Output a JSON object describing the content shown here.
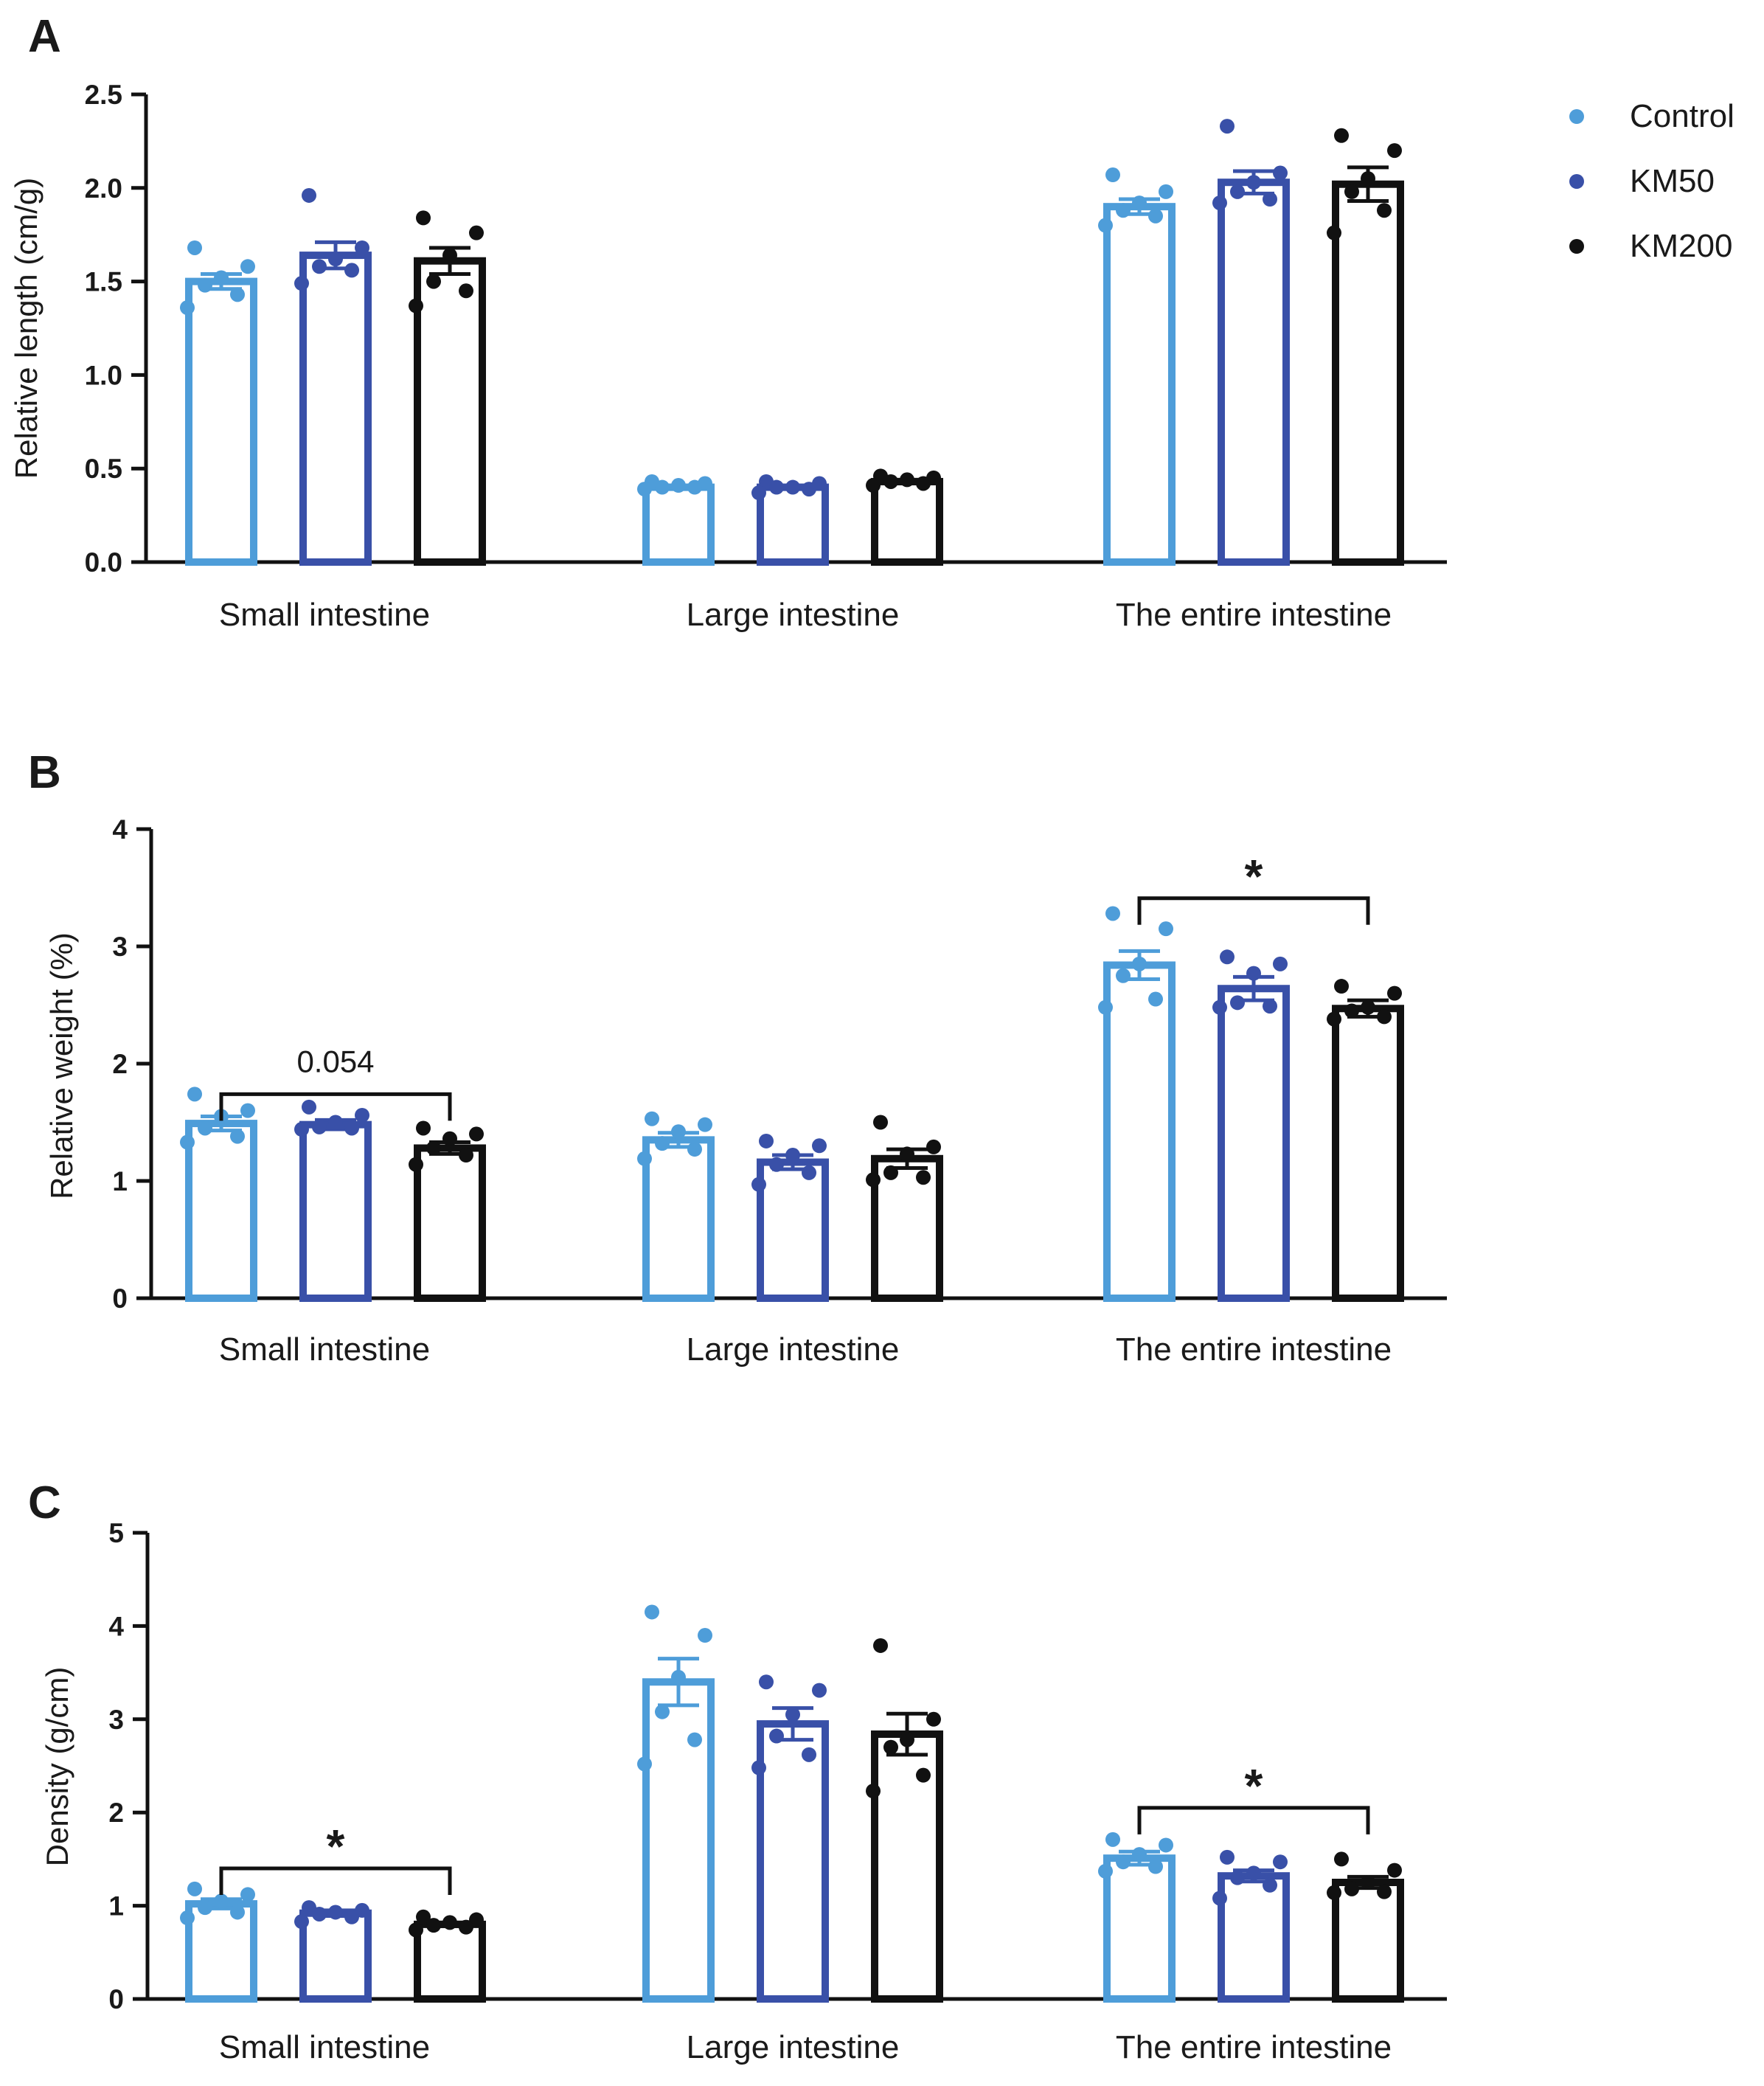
{
  "legend": [
    {
      "name": "Control",
      "color": "#4e9dd9"
    },
    {
      "name": "KM50",
      "color": "#3950a8"
    },
    {
      "name": "KM200",
      "color": "#111111"
    }
  ],
  "chart_data": [
    {
      "panel": "A",
      "type": "bar",
      "ylabel": "Relative length (cm/g)",
      "ylim": [
        0,
        2.5
      ],
      "yticks": [
        "0.0",
        "0.5",
        "1.0",
        "1.5",
        "2.0",
        "2.5"
      ],
      "categories": [
        "Small intestine",
        "Large intestine",
        "The entire intestine"
      ],
      "series": [
        {
          "name": "Control",
          "values": [
            1.5,
            0.4,
            1.9
          ],
          "sem": [
            0.04,
            0.01,
            0.04
          ],
          "points": [
            [
              1.68,
              1.58,
              1.52,
              1.48,
              1.43,
              1.36
            ],
            [
              0.43,
              0.42,
              0.41,
              0.4,
              0.4,
              0.39
            ],
            [
              2.07,
              1.98,
              1.92,
              1.88,
              1.85,
              1.8
            ]
          ]
        },
        {
          "name": "KM50",
          "values": [
            1.64,
            0.4,
            2.03
          ],
          "sem": [
            0.07,
            0.01,
            0.06
          ],
          "points": [
            [
              1.96,
              1.68,
              1.62,
              1.58,
              1.56,
              1.49
            ],
            [
              0.43,
              0.42,
              0.4,
              0.4,
              0.39,
              0.37
            ],
            [
              2.33,
              2.08,
              2.03,
              1.98,
              1.94,
              1.92
            ]
          ]
        },
        {
          "name": "KM200",
          "values": [
            1.61,
            0.43,
            2.02
          ],
          "sem": [
            0.07,
            0.01,
            0.09
          ],
          "points": [
            [
              1.84,
              1.76,
              1.64,
              1.5,
              1.45,
              1.37
            ],
            [
              0.46,
              0.45,
              0.44,
              0.43,
              0.42,
              0.41
            ],
            [
              2.28,
              2.2,
              2.05,
              1.98,
              1.88,
              1.76
            ]
          ]
        }
      ],
      "significance": []
    },
    {
      "panel": "B",
      "type": "bar",
      "ylabel": "Relative weight (%)",
      "ylim": [
        0,
        4
      ],
      "yticks": [
        "0",
        "1",
        "2",
        "3",
        "4"
      ],
      "categories": [
        "Small intestine",
        "Large intestine",
        "The entire intestine"
      ],
      "series": [
        {
          "name": "Control",
          "values": [
            1.49,
            1.35,
            2.84
          ],
          "sem": [
            0.06,
            0.06,
            0.12
          ],
          "points": [
            [
              1.74,
              1.6,
              1.55,
              1.45,
              1.38,
              1.33
            ],
            [
              1.53,
              1.48,
              1.42,
              1.32,
              1.27,
              1.19
            ],
            [
              3.28,
              3.15,
              2.85,
              2.75,
              2.55,
              2.48
            ]
          ]
        },
        {
          "name": "KM50",
          "values": [
            1.48,
            1.16,
            2.64
          ],
          "sem": [
            0.04,
            0.06,
            0.1
          ],
          "points": [
            [
              1.63,
              1.56,
              1.5,
              1.46,
              1.45,
              1.44
            ],
            [
              1.34,
              1.3,
              1.22,
              1.14,
              1.07,
              0.97
            ],
            [
              2.91,
              2.85,
              2.77,
              2.52,
              2.49,
              2.48
            ]
          ]
        },
        {
          "name": "KM200",
          "values": [
            1.28,
            1.19,
            2.47
          ],
          "sem": [
            0.05,
            0.08,
            0.07
          ],
          "points": [
            [
              1.45,
              1.4,
              1.36,
              1.28,
              1.22,
              1.14
            ],
            [
              1.5,
              1.29,
              1.23,
              1.07,
              1.03,
              1.01
            ],
            [
              2.66,
              2.6,
              2.48,
              2.45,
              2.4,
              2.38
            ]
          ]
        }
      ],
      "significance": [
        {
          "category": "Small intestine",
          "from": "Control",
          "to": "KM200",
          "label": "0.054",
          "y": 1.74
        },
        {
          "category": "The entire intestine",
          "from": "Control",
          "to": "KM200",
          "label": "*",
          "y": 3.41
        }
      ]
    },
    {
      "panel": "C",
      "type": "bar",
      "ylabel": "Density (g/cm)",
      "ylim": [
        0,
        5
      ],
      "yticks": [
        "0",
        "1",
        "2",
        "3",
        "4",
        "5"
      ],
      "categories": [
        "Small intestine",
        "Large intestine",
        "The entire intestine"
      ],
      "series": [
        {
          "name": "Control",
          "values": [
            1.02,
            3.4,
            1.51
          ],
          "sem": [
            0.05,
            0.25,
            0.07
          ],
          "points": [
            [
              1.18,
              1.12,
              1.05,
              0.98,
              0.93,
              0.87
            ],
            [
              4.15,
              3.9,
              3.45,
              3.08,
              2.78,
              2.52
            ],
            [
              1.71,
              1.65,
              1.55,
              1.47,
              1.42,
              1.37
            ]
          ]
        },
        {
          "name": "KM50",
          "values": [
            0.92,
            2.95,
            1.32
          ],
          "sem": [
            0.03,
            0.17,
            0.06
          ],
          "points": [
            [
              0.98,
              0.95,
              0.93,
              0.91,
              0.88,
              0.83
            ],
            [
              3.4,
              3.31,
              3.05,
              2.82,
              2.62,
              2.48
            ],
            [
              1.52,
              1.47,
              1.35,
              1.3,
              1.22,
              1.08
            ]
          ]
        },
        {
          "name": "KM200",
          "values": [
            0.8,
            2.84,
            1.25
          ],
          "sem": [
            0.02,
            0.22,
            0.06
          ],
          "points": [
            [
              0.88,
              0.85,
              0.82,
              0.79,
              0.77,
              0.74
            ],
            [
              3.79,
              3.0,
              2.78,
              2.7,
              2.4,
              2.23
            ],
            [
              1.5,
              1.38,
              1.25,
              1.18,
              1.15,
              1.14
            ]
          ]
        }
      ],
      "significance": [
        {
          "category": "Small intestine",
          "from": "Control",
          "to": "KM200",
          "label": "*",
          "y": 1.4
        },
        {
          "category": "The entire intestine",
          "from": "Control",
          "to": "KM200",
          "label": "*",
          "y": 2.05
        }
      ]
    }
  ]
}
